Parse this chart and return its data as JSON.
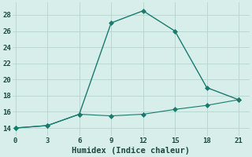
{
  "xlabel": "Humidex (Indice chaleur)",
  "background_color": "#d8eeea",
  "grid_color": "#b8d8d2",
  "line_color": "#1a7a6e",
  "series1_x": [
    0,
    3,
    6,
    9,
    12,
    15,
    18,
    21
  ],
  "series1_y": [
    14.0,
    14.3,
    15.7,
    27.0,
    28.5,
    26.0,
    19.0,
    17.5
  ],
  "series2_x": [
    0,
    3,
    6,
    9,
    12,
    15,
    18,
    21
  ],
  "series2_y": [
    14.0,
    14.3,
    15.7,
    15.5,
    15.7,
    16.3,
    16.8,
    17.5
  ],
  "xlim": [
    -0.3,
    22
  ],
  "ylim": [
    13.0,
    29.5
  ],
  "xticks": [
    0,
    3,
    6,
    9,
    12,
    15,
    18,
    21
  ],
  "yticks": [
    14,
    16,
    18,
    20,
    22,
    24,
    26,
    28
  ],
  "marker": "D",
  "markersize": 3,
  "linewidth1": 1.0,
  "linewidth2": 0.8,
  "tick_fontsize": 6.5,
  "xlabel_fontsize": 7.5
}
